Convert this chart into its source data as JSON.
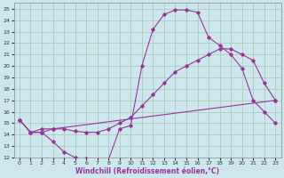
{
  "xlabel": "Windchill (Refroidissement éolien,°C)",
  "background_color": "#cce8ee",
  "grid_color": "#aaccbb",
  "line_color": "#993399",
  "xlim": [
    -0.5,
    23.5
  ],
  "ylim": [
    12,
    25.5
  ],
  "xticks": [
    0,
    1,
    2,
    3,
    4,
    5,
    6,
    7,
    8,
    9,
    10,
    11,
    12,
    13,
    14,
    15,
    16,
    17,
    18,
    19,
    20,
    21,
    22,
    23
  ],
  "yticks": [
    12,
    13,
    14,
    15,
    16,
    17,
    18,
    19,
    20,
    21,
    22,
    23,
    24,
    25
  ],
  "series": [
    {
      "x": [
        0,
        1,
        2,
        3,
        4,
        5,
        6,
        7,
        8,
        9,
        10,
        11,
        12,
        13,
        14,
        15,
        16,
        17,
        18,
        19,
        20,
        21,
        22,
        23
      ],
      "y": [
        15.3,
        14.2,
        14.2,
        13.4,
        12.5,
        12.0,
        11.9,
        11.8,
        11.8,
        14.5,
        14.8,
        20.0,
        23.2,
        24.5,
        24.9,
        24.9,
        24.7,
        22.5,
        21.8,
        21.0,
        19.8,
        17.0,
        16.0,
        15.0
      ]
    },
    {
      "x": [
        0,
        1,
        2,
        3,
        4,
        5,
        6,
        7,
        8,
        9,
        10,
        11,
        12,
        13,
        14,
        15,
        16,
        17,
        18,
        19,
        20,
        21,
        22,
        23
      ],
      "y": [
        15.3,
        14.2,
        14.5,
        14.5,
        14.5,
        14.3,
        14.2,
        14.2,
        14.5,
        15.0,
        15.5,
        16.5,
        17.5,
        18.5,
        19.5,
        20.0,
        20.5,
        21.0,
        21.5,
        21.5,
        21.0,
        20.5,
        18.5,
        17.0
      ]
    },
    {
      "x": [
        0,
        1,
        2,
        3,
        23
      ],
      "y": [
        15.3,
        14.2,
        14.2,
        14.5,
        17.0
      ]
    }
  ]
}
